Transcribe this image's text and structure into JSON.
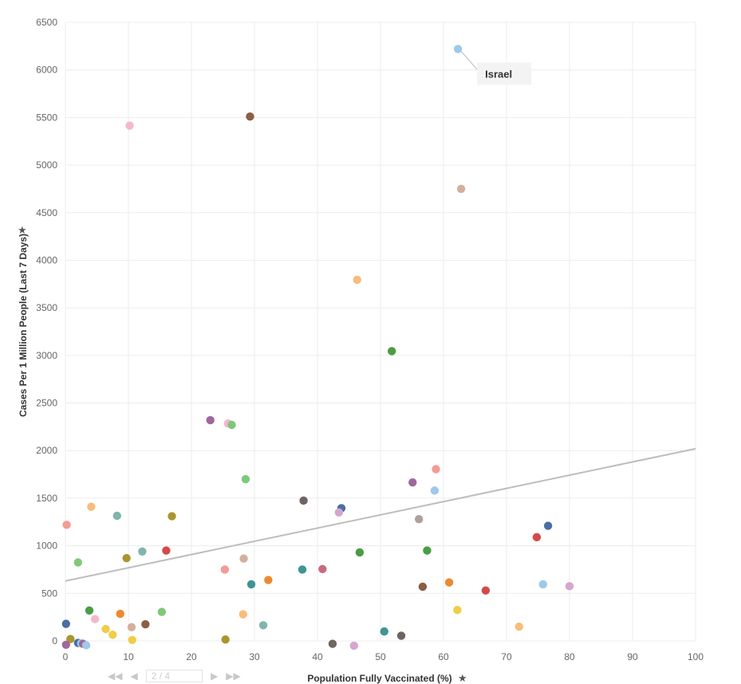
{
  "chart_data": {
    "type": "scatter",
    "xlabel": "Population Fully Vaccinated (%)",
    "ylabel": "Cases Per 1 Million People (Last 7 Days)",
    "xlim": [
      0,
      100
    ],
    "ylim": [
      0,
      6500
    ],
    "x_ticks": [
      0,
      10,
      20,
      30,
      40,
      50,
      60,
      70,
      80,
      90,
      100
    ],
    "y_ticks": [
      0,
      500,
      1000,
      1500,
      2000,
      2500,
      3000,
      3500,
      4000,
      4500,
      5000,
      5500,
      6000,
      6500
    ],
    "grid": true,
    "trendline": {
      "x": [
        0,
        100
      ],
      "y": [
        630,
        2020
      ]
    },
    "annotation": {
      "label": "Israel",
      "x": 62.3,
      "y": 6220
    },
    "points": [
      {
        "x": 62.3,
        "y": 6220,
        "color": "#9ec9e8"
      },
      {
        "x": 29.3,
        "y": 5510,
        "color": "#8c5e43"
      },
      {
        "x": 10.2,
        "y": 5415,
        "color": "#f4b8cc"
      },
      {
        "x": 62.8,
        "y": 4750,
        "color": "#d4af9d"
      },
      {
        "x": 46.3,
        "y": 3795,
        "color": "#f7bd7b"
      },
      {
        "x": 51.8,
        "y": 3045,
        "color": "#4a9c45"
      },
      {
        "x": 23.0,
        "y": 2320,
        "color": "#a0679b"
      },
      {
        "x": 25.8,
        "y": 2285,
        "color": "#f4b8cc"
      },
      {
        "x": 26.4,
        "y": 2270,
        "color": "#7fc87a"
      },
      {
        "x": 58.8,
        "y": 1805,
        "color": "#f39b95"
      },
      {
        "x": 28.6,
        "y": 1700,
        "color": "#7fc87a"
      },
      {
        "x": 55.1,
        "y": 1665,
        "color": "#a0679b"
      },
      {
        "x": 58.6,
        "y": 1580,
        "color": "#9ec9e8"
      },
      {
        "x": 37.8,
        "y": 1475,
        "color": "#6e6462"
      },
      {
        "x": 4.1,
        "y": 1410,
        "color": "#f7bd7b"
      },
      {
        "x": 43.8,
        "y": 1395,
        "color": "#4b6ea3"
      },
      {
        "x": 43.4,
        "y": 1350,
        "color": "#d5a7cf"
      },
      {
        "x": 8.2,
        "y": 1315,
        "color": "#81b4ae"
      },
      {
        "x": 16.9,
        "y": 1310,
        "color": "#a8962d"
      },
      {
        "x": 56.1,
        "y": 1280,
        "color": "#b1a09a"
      },
      {
        "x": 0.2,
        "y": 1220,
        "color": "#f39b95"
      },
      {
        "x": 76.6,
        "y": 1210,
        "color": "#4b6ea3"
      },
      {
        "x": 74.8,
        "y": 1090,
        "color": "#d44a4a"
      },
      {
        "x": 57.4,
        "y": 950,
        "color": "#4a9c45"
      },
      {
        "x": 16.0,
        "y": 950,
        "color": "#d44a4a"
      },
      {
        "x": 12.2,
        "y": 940,
        "color": "#81b4ae"
      },
      {
        "x": 46.7,
        "y": 930,
        "color": "#4a9c45"
      },
      {
        "x": 9.7,
        "y": 870,
        "color": "#a8962d"
      },
      {
        "x": 28.3,
        "y": 865,
        "color": "#d4af9d"
      },
      {
        "x": 2.0,
        "y": 825,
        "color": "#7fc87a"
      },
      {
        "x": 40.8,
        "y": 755,
        "color": "#c86b81"
      },
      {
        "x": 37.6,
        "y": 750,
        "color": "#3f9494"
      },
      {
        "x": 25.3,
        "y": 750,
        "color": "#f39b95"
      },
      {
        "x": 32.2,
        "y": 640,
        "color": "#ec8a31"
      },
      {
        "x": 60.9,
        "y": 615,
        "color": "#ec8a31"
      },
      {
        "x": 29.5,
        "y": 595,
        "color": "#3f9494"
      },
      {
        "x": 75.8,
        "y": 595,
        "color": "#9ec9e8"
      },
      {
        "x": 80.0,
        "y": 575,
        "color": "#d5a7cf"
      },
      {
        "x": 56.7,
        "y": 570,
        "color": "#8c5e43"
      },
      {
        "x": 66.7,
        "y": 530,
        "color": "#d44a4a"
      },
      {
        "x": 62.2,
        "y": 325,
        "color": "#f0cd4a"
      },
      {
        "x": 3.8,
        "y": 320,
        "color": "#4a9c45"
      },
      {
        "x": 15.3,
        "y": 305,
        "color": "#7fc87a"
      },
      {
        "x": 8.7,
        "y": 285,
        "color": "#ec8a31"
      },
      {
        "x": 28.2,
        "y": 280,
        "color": "#f7bd7b"
      },
      {
        "x": 4.7,
        "y": 230,
        "color": "#f4b8cc"
      },
      {
        "x": 0.1,
        "y": 180,
        "color": "#4b6ea3"
      },
      {
        "x": 12.7,
        "y": 175,
        "color": "#8c5e43"
      },
      {
        "x": 31.4,
        "y": 165,
        "color": "#81b4ae"
      },
      {
        "x": 72.0,
        "y": 150,
        "color": "#f7bd7b"
      },
      {
        "x": 10.5,
        "y": 145,
        "color": "#d4af9d"
      },
      {
        "x": 6.4,
        "y": 125,
        "color": "#f0cd4a"
      },
      {
        "x": 50.6,
        "y": 100,
        "color": "#3f9494"
      },
      {
        "x": 7.5,
        "y": 65,
        "color": "#f0cd4a"
      },
      {
        "x": 53.3,
        "y": 55,
        "color": "#6e6462"
      },
      {
        "x": 0.8,
        "y": 20,
        "color": "#a8962d"
      },
      {
        "x": 25.4,
        "y": 15,
        "color": "#a8962d"
      },
      {
        "x": 10.6,
        "y": 10,
        "color": "#f0cd4a"
      },
      {
        "x": 2.0,
        "y": -20,
        "color": "#4b6ea3"
      },
      {
        "x": 2.5,
        "y": -25,
        "color": "#9ec9e8"
      },
      {
        "x": 2.8,
        "y": -30,
        "color": "#a0679b"
      },
      {
        "x": 42.4,
        "y": -30,
        "color": "#6e6462"
      },
      {
        "x": 0.1,
        "y": -40,
        "color": "#a0679b"
      },
      {
        "x": 3.3,
        "y": -45,
        "color": "#9ec9e8"
      },
      {
        "x": 45.8,
        "y": -50,
        "color": "#d5a7cf"
      }
    ]
  },
  "pager": {
    "first_icon": "first-page-icon",
    "prev_icon": "prev-page-icon",
    "page_text": "2 / 4",
    "next_icon": "next-page-icon",
    "last_icon": "last-page-icon"
  }
}
